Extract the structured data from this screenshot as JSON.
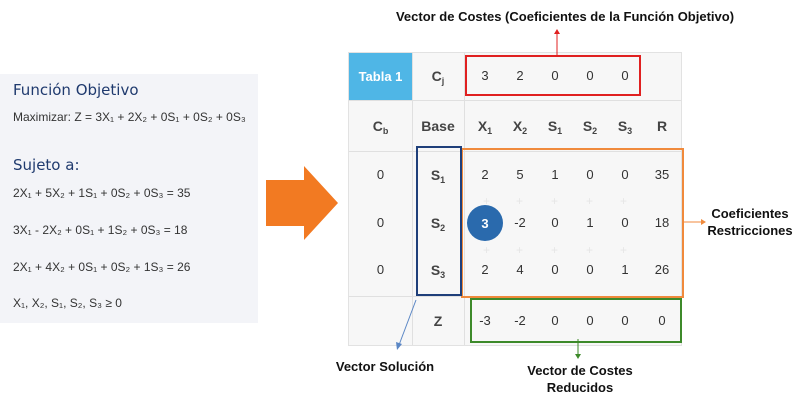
{
  "problem": {
    "objective_title": "Función Objetivo",
    "objective": "Maximizar: Z = 3X₁ + 2X₂ + 0S₁ + 0S₂ + 0S₃",
    "subject_title": "Sujeto a:",
    "constraints": [
      "2X₁ + 5X₂ + 1S₁ + 0S₂ + 0S₃ = 35",
      "3X₁ - 2X₂ + 0S₁ + 1S₂ + 0S₃ = 18",
      "2X₁ + 4X₂ + 0S₁ + 0S₂ + 1S₃ = 26",
      "X₁, X₂, S₁, S₂, S₃ ≥ 0"
    ]
  },
  "tableau": {
    "name": "Tabla 1",
    "cj_label": "C",
    "cj_sub": "j",
    "cj_values": [
      "3",
      "2",
      "0",
      "0",
      "0"
    ],
    "cb_label": "C",
    "cb_sub": "b",
    "base_label": "Base",
    "columns": [
      {
        "main": "X",
        "sub": "1"
      },
      {
        "main": "X",
        "sub": "2"
      },
      {
        "main": "S",
        "sub": "1"
      },
      {
        "main": "S",
        "sub": "2"
      },
      {
        "main": "S",
        "sub": "3"
      },
      {
        "main": "R",
        "sub": ""
      }
    ],
    "rows": [
      {
        "cb": "0",
        "base": "S",
        "base_sub": "1",
        "values": [
          "2",
          "5",
          "1",
          "0",
          "0",
          "35"
        ]
      },
      {
        "cb": "0",
        "base": "S",
        "base_sub": "2",
        "values": [
          "3",
          "-2",
          "0",
          "1",
          "0",
          "18"
        ]
      },
      {
        "cb": "0",
        "base": "S",
        "base_sub": "3",
        "values": [
          "2",
          "4",
          "0",
          "0",
          "1",
          "26"
        ]
      }
    ],
    "z_label": "Z",
    "z_values": [
      "-3",
      "-2",
      "0",
      "0",
      "0",
      "0"
    ]
  },
  "annotations": {
    "costs_vector": "Vector de Costes (Coeficientes de la Función Objetivo)",
    "constraints_coef_1": "Coeficientes",
    "constraints_coef_2": "Restricciones",
    "solution_vector": "Vector Solución",
    "reduced_costs_1": "Vector de Costes",
    "reduced_costs_2": "Reducidos"
  },
  "colors": {
    "costs_box": "#e02020",
    "restrictions_box": "#f08a3c",
    "solution_box": "#1f3f7a",
    "reduced_box": "#3d8a2a",
    "pivot": "#2a6aad",
    "tabla_header": "#4fb6e6",
    "arrow": "#f27a22"
  }
}
